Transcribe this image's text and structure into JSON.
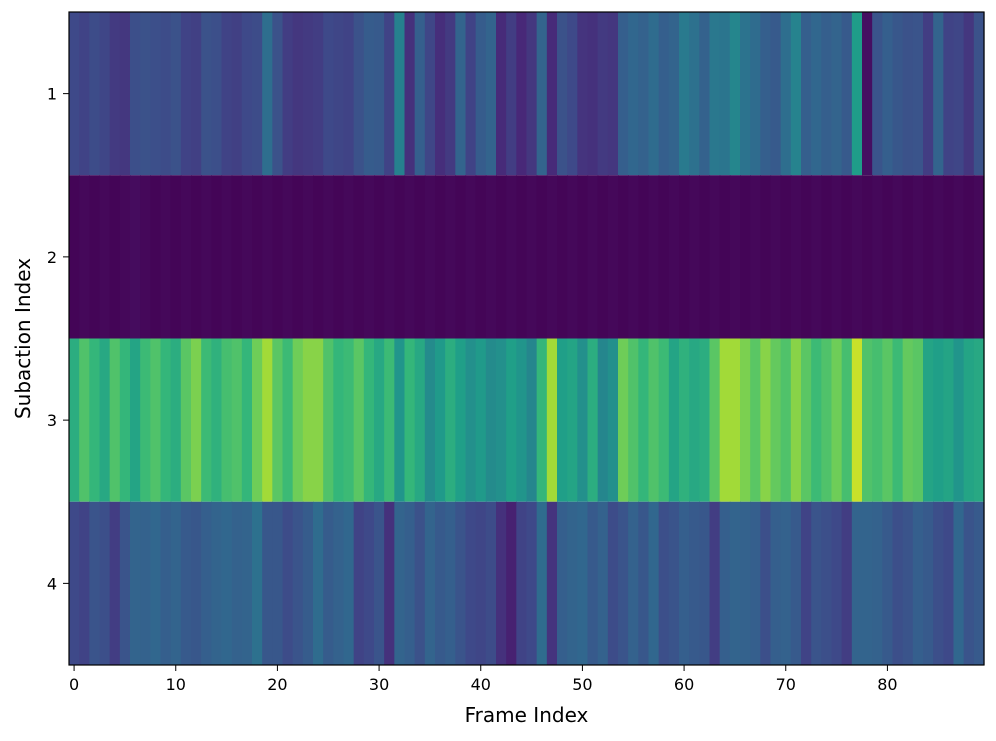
{
  "chart_data": {
    "type": "heatmap",
    "title": "",
    "xlabel": "Frame Index",
    "ylabel": "Subaction Index",
    "x_ticks": [
      0,
      10,
      20,
      30,
      40,
      50,
      60,
      70,
      80
    ],
    "y_ticks": [
      1,
      2,
      3,
      4
    ],
    "xlim": [
      -0.5,
      89.5
    ],
    "ylim": [
      0.5,
      4.5
    ],
    "colormap": "viridis",
    "value_range": [
      0,
      1
    ],
    "grid": false,
    "legend": "none",
    "rows": [
      {
        "name": "1",
        "values": [
          0.22,
          0.2,
          0.23,
          0.21,
          0.17,
          0.16,
          0.24,
          0.25,
          0.24,
          0.23,
          0.25,
          0.2,
          0.19,
          0.25,
          0.24,
          0.2,
          0.19,
          0.22,
          0.23,
          0.36,
          0.25,
          0.18,
          0.16,
          0.17,
          0.18,
          0.22,
          0.21,
          0.2,
          0.25,
          0.29,
          0.28,
          0.2,
          0.44,
          0.14,
          0.3,
          0.21,
          0.13,
          0.17,
          0.32,
          0.2,
          0.29,
          0.32,
          0.12,
          0.18,
          0.11,
          0.16,
          0.32,
          0.12,
          0.25,
          0.22,
          0.15,
          0.14,
          0.17,
          0.16,
          0.3,
          0.33,
          0.31,
          0.35,
          0.3,
          0.32,
          0.41,
          0.37,
          0.31,
          0.4,
          0.39,
          0.46,
          0.38,
          0.35,
          0.3,
          0.28,
          0.36,
          0.45,
          0.3,
          0.33,
          0.3,
          0.32,
          0.28,
          0.55,
          0.04,
          0.26,
          0.3,
          0.27,
          0.25,
          0.26,
          0.18,
          0.32,
          0.2,
          0.21,
          0.16,
          0.25
        ]
      },
      {
        "name": "2",
        "values": [
          0.01,
          0.02,
          0.01,
          0.02,
          0.01,
          0.02,
          0.03,
          0.02,
          0.01,
          0.02,
          0.01,
          0.02,
          0.01,
          0.02,
          0.01,
          0.02,
          0.01,
          0.02,
          0.01,
          0.02,
          0.01,
          0.02,
          0.01,
          0.02,
          0.01,
          0.02,
          0.01,
          0.02,
          0.01,
          0.02,
          0.01,
          0.02,
          0.01,
          0.02,
          0.01,
          0.02,
          0.01,
          0.02,
          0.01,
          0.02,
          0.01,
          0.02,
          0.01,
          0.02,
          0.01,
          0.02,
          0.01,
          0.02,
          0.01,
          0.02,
          0.01,
          0.02,
          0.01,
          0.02,
          0.01,
          0.02,
          0.01,
          0.02,
          0.01,
          0.02,
          0.01,
          0.02,
          0.01,
          0.02,
          0.01,
          0.02,
          0.01,
          0.02,
          0.01,
          0.02,
          0.01,
          0.02,
          0.01,
          0.02,
          0.01,
          0.02,
          0.01,
          0.02,
          0.01,
          0.02,
          0.01,
          0.02,
          0.01,
          0.02,
          0.01,
          0.02,
          0.01,
          0.02,
          0.01,
          0.02
        ]
      },
      {
        "name": "3",
        "values": [
          0.62,
          0.72,
          0.66,
          0.6,
          0.72,
          0.66,
          0.58,
          0.68,
          0.72,
          0.66,
          0.62,
          0.74,
          0.8,
          0.68,
          0.64,
          0.7,
          0.72,
          0.66,
          0.78,
          0.86,
          0.74,
          0.68,
          0.78,
          0.82,
          0.82,
          0.72,
          0.66,
          0.68,
          0.74,
          0.66,
          0.6,
          0.68,
          0.52,
          0.66,
          0.6,
          0.48,
          0.54,
          0.62,
          0.56,
          0.5,
          0.54,
          0.48,
          0.5,
          0.56,
          0.52,
          0.46,
          0.66,
          0.86,
          0.56,
          0.58,
          0.5,
          0.62,
          0.46,
          0.5,
          0.78,
          0.72,
          0.66,
          0.72,
          0.68,
          0.58,
          0.64,
          0.6,
          0.62,
          0.74,
          0.86,
          0.86,
          0.8,
          0.74,
          0.82,
          0.76,
          0.72,
          0.82,
          0.74,
          0.68,
          0.72,
          0.78,
          0.7,
          0.92,
          0.72,
          0.7,
          0.74,
          0.68,
          0.76,
          0.74,
          0.58,
          0.56,
          0.58,
          0.52,
          0.58,
          0.6
        ]
      },
      {
        "name": "4",
        "values": [
          0.22,
          0.2,
          0.26,
          0.24,
          0.18,
          0.26,
          0.32,
          0.31,
          0.33,
          0.3,
          0.32,
          0.28,
          0.27,
          0.3,
          0.32,
          0.33,
          0.31,
          0.32,
          0.37,
          0.27,
          0.27,
          0.23,
          0.26,
          0.29,
          0.35,
          0.29,
          0.31,
          0.33,
          0.2,
          0.22,
          0.26,
          0.14,
          0.32,
          0.3,
          0.25,
          0.32,
          0.28,
          0.3,
          0.26,
          0.22,
          0.21,
          0.23,
          0.14,
          0.09,
          0.2,
          0.22,
          0.35,
          0.15,
          0.3,
          0.32,
          0.33,
          0.28,
          0.31,
          0.23,
          0.26,
          0.31,
          0.27,
          0.33,
          0.24,
          0.26,
          0.3,
          0.28,
          0.27,
          0.18,
          0.3,
          0.32,
          0.31,
          0.3,
          0.24,
          0.3,
          0.31,
          0.28,
          0.2,
          0.26,
          0.24,
          0.22,
          0.18,
          0.32,
          0.32,
          0.31,
          0.28,
          0.24,
          0.26,
          0.3,
          0.28,
          0.24,
          0.22,
          0.33,
          0.26,
          0.28
        ]
      }
    ]
  }
}
